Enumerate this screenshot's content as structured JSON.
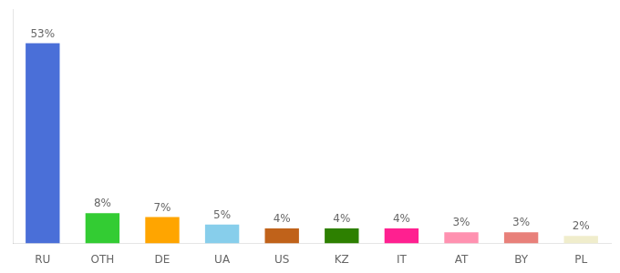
{
  "chart_data": {
    "type": "bar",
    "categories": [
      "RU",
      "OTH",
      "DE",
      "UA",
      "US",
      "KZ",
      "IT",
      "AT",
      "BY",
      "PL"
    ],
    "values": [
      53,
      8,
      7,
      5,
      4,
      4,
      4,
      3,
      3,
      2
    ],
    "value_labels": [
      "53%",
      "8%",
      "7%",
      "5%",
      "4%",
      "4%",
      "4%",
      "3%",
      "3%",
      "2%"
    ],
    "colors": [
      "#4a6fd8",
      "#33cc33",
      "#ffa500",
      "#87ceeb",
      "#c0621a",
      "#2d8000",
      "#ff2090",
      "#ff91b0",
      "#e8807a",
      "#f0edcc"
    ],
    "ylim": [
      0,
      62
    ],
    "data_labels": true,
    "tick_labels": "x",
    "grid": false
  }
}
